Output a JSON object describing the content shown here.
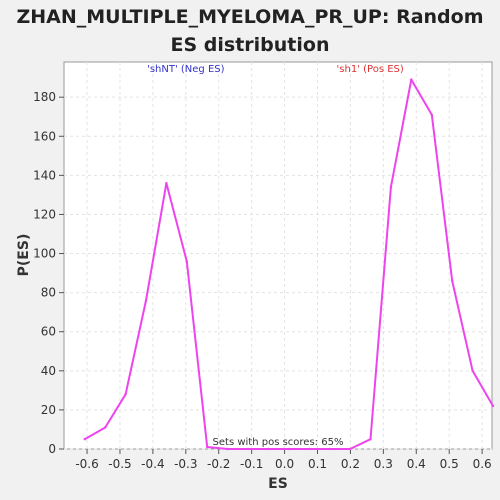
{
  "chart_data": {
    "type": "line",
    "title": "ZHAN_MULTIPLE_MYELOMA_PR_UP: Random ES distribution",
    "xlabel": "ES",
    "ylabel": "P(ES)",
    "xlim": [
      -0.67,
      0.63
    ],
    "ylim": [
      0,
      198
    ],
    "x_ticks": [
      -0.6,
      -0.5,
      -0.4,
      -0.3,
      -0.2,
      -0.1,
      0.0,
      0.1,
      0.2,
      0.3,
      0.4,
      0.5,
      0.6
    ],
    "x_tick_labels": [
      "-0.6",
      "-0.5",
      "-0.4",
      "-0.3",
      "-0.2",
      "-0.1",
      "0.0",
      "0.1",
      "0.2",
      "0.3",
      "0.4",
      "0.5",
      "0.6"
    ],
    "y_ticks": [
      0,
      20,
      40,
      60,
      80,
      100,
      120,
      140,
      160,
      180
    ],
    "grid": true,
    "series": [
      {
        "color": "#ee44ee",
        "x": [
          -0.607,
          -0.545,
          -0.483,
          -0.421,
          -0.359,
          -0.297,
          -0.235,
          -0.173,
          -0.111,
          -0.049,
          0.013,
          0.075,
          0.137,
          0.199,
          0.261,
          0.323,
          0.385,
          0.447,
          0.509,
          0.571,
          0.633
        ],
        "y": [
          5,
          11,
          28,
          76,
          136,
          96,
          1,
          0,
          0,
          0,
          0,
          0,
          0,
          0,
          5,
          134,
          189,
          171,
          86,
          40,
          22
        ]
      }
    ],
    "annotations": [
      {
        "text": "'shNT' (Neg ES)",
        "x": -0.3,
        "y": 193,
        "color": "#3333cc"
      },
      {
        "text": "'sh1' (Pos ES)",
        "x": 0.26,
        "y": 193,
        "color": "#dd3333"
      },
      {
        "text": "Sets with pos scores: 65%",
        "x": -0.02,
        "y": 2,
        "color": "#333333"
      }
    ]
  }
}
